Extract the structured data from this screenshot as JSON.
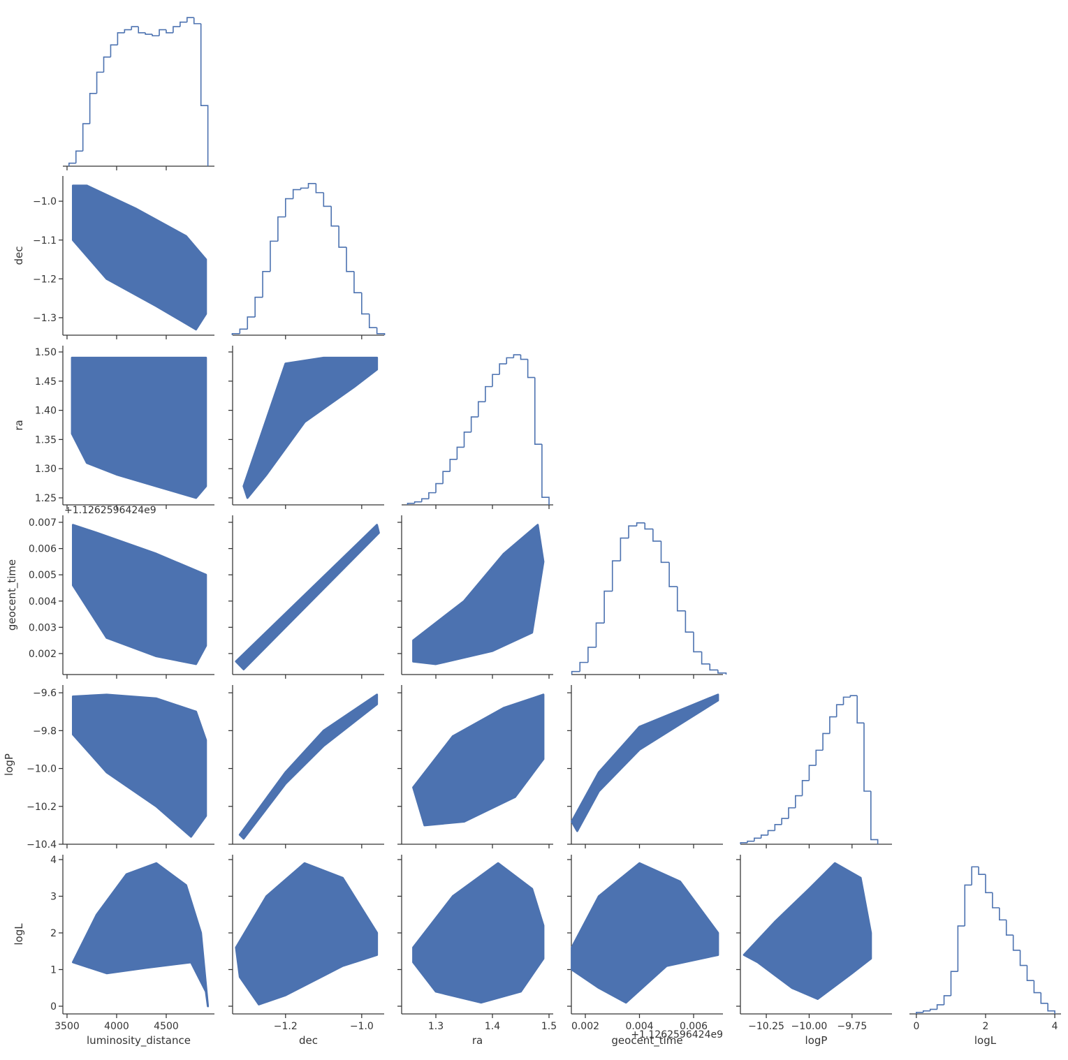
{
  "chart_data": {
    "type": "corner",
    "color": "#4c72b0",
    "hist_ylim": [
      0,
      105
    ],
    "variables": [
      {
        "name": "luminosity_distance",
        "xlim": [
          3458,
          4986
        ],
        "xticks": [
          3500,
          4000,
          4500
        ],
        "bins": [
          3520,
          3590,
          3660,
          3730,
          3800,
          3870,
          3940,
          4010,
          4080,
          4150,
          4220,
          4290,
          4360,
          4430,
          4500,
          4570,
          4640,
          4710,
          4780,
          4850,
          4920
        ],
        "counts": [
          2,
          10,
          28,
          48,
          62,
          72,
          80,
          88,
          90,
          92,
          88,
          87,
          86,
          90,
          88,
          92,
          95,
          98,
          94,
          40
        ]
      },
      {
        "name": "dec",
        "xlim": [
          -1.339,
          -0.941
        ],
        "xticks": [
          {
            "value": -1.2,
            "label": "−1.2"
          },
          {
            "value": -1.0,
            "label": "−1.0"
          }
        ],
        "ylim": [
          -1.345,
          -0.935
        ],
        "yticks": [
          {
            "value": -1.0,
            "label": "−1.0"
          },
          {
            "value": -1.1,
            "label": "−1.1"
          },
          {
            "value": -1.2,
            "label": "−1.2"
          },
          {
            "value": -1.3,
            "label": "−1.3"
          }
        ],
        "bins": [
          -1.34,
          -1.32,
          -1.3,
          -1.28,
          -1.26,
          -1.24,
          -1.22,
          -1.2,
          -1.18,
          -1.16,
          -1.14,
          -1.12,
          -1.1,
          -1.08,
          -1.06,
          -1.04,
          -1.02,
          -1.0,
          -0.98,
          -0.96,
          -0.94
        ],
        "counts": [
          1,
          4,
          12,
          25,
          42,
          62,
          78,
          90,
          96,
          97,
          100,
          94,
          85,
          72,
          58,
          42,
          28,
          14,
          5,
          1
        ]
      },
      {
        "name": "ra",
        "xlim": [
          1.2395,
          1.5074
        ],
        "xticks": [
          1.3,
          1.4,
          1.5
        ],
        "ylim": [
          1.238,
          1.5108
        ],
        "yticks": [
          1.25,
          {
            "value": 1.3,
            "label": "1.30"
          },
          1.35,
          {
            "value": 1.4,
            "label": "1.40"
          },
          1.45,
          {
            "value": 1.5,
            "label": "1.50"
          }
        ],
        "bins": [
          1.25,
          1.2625,
          1.275,
          1.2875,
          1.3,
          1.3125,
          1.325,
          1.3375,
          1.35,
          1.3625,
          1.375,
          1.3875,
          1.4,
          1.4125,
          1.425,
          1.4375,
          1.45,
          1.4625,
          1.475,
          1.4875,
          1.5
        ],
        "counts": [
          1,
          2,
          4,
          8,
          14,
          22,
          30,
          38,
          48,
          58,
          68,
          78,
          86,
          93,
          97,
          99,
          96,
          84,
          40,
          5
        ]
      },
      {
        "name": "geocent_time",
        "offset": "+1.1262596424e9",
        "xlim": [
          0.001484,
          0.007084
        ],
        "xticks": [
          0.002,
          0.004,
          0.006
        ],
        "ylim": [
          0.0012,
          0.007266
        ],
        "yticks": [
          0.002,
          0.003,
          0.004,
          0.005,
          0.006,
          0.007
        ],
        "bins": [
          0.0015,
          0.0018,
          0.0021,
          0.0024,
          0.0027,
          0.003,
          0.0033,
          0.0036,
          0.0039,
          0.0042,
          0.0045,
          0.0048,
          0.0051,
          0.0054,
          0.0057,
          0.006,
          0.0063,
          0.0066,
          0.0069,
          0.0072
        ],
        "counts": [
          2,
          8,
          18,
          34,
          55,
          75,
          90,
          98,
          100,
          96,
          88,
          74,
          58,
          42,
          28,
          15,
          7,
          3,
          1
        ]
      },
      {
        "name": "logP",
        "xlim": [
          -10.401,
          -9.517
        ],
        "xticks": [
          {
            "value": -10.25,
            "label": "−10.25"
          },
          {
            "value": -10.0,
            "label": "−10.00"
          },
          {
            "value": -9.75,
            "label": "−9.75"
          }
        ],
        "ylim": [
          -10.4,
          -9.559
        ],
        "yticks": [
          {
            "value": -9.6,
            "label": "−9.6"
          },
          {
            "value": -9.8,
            "label": "−9.8"
          },
          {
            "value": -10.0,
            "label": "−10.0"
          },
          {
            "value": -10.2,
            "label": "−10.2"
          },
          {
            "value": -10.4,
            "label": "−10.4"
          }
        ],
        "bins": [
          -10.4,
          -10.36,
          -10.32,
          -10.28,
          -10.24,
          -10.2,
          -10.16,
          -10.12,
          -10.08,
          -10.04,
          -10.0,
          -9.96,
          -9.92,
          -9.88,
          -9.84,
          -9.8,
          -9.76,
          -9.72,
          -9.68,
          -9.64,
          -9.6
        ],
        "counts": [
          1,
          2,
          4,
          6,
          9,
          13,
          17,
          24,
          32,
          42,
          52,
          62,
          73,
          84,
          92,
          97,
          98,
          80,
          35,
          3
        ]
      },
      {
        "name": "logL",
        "xlim": [
          -0.2,
          4.18
        ],
        "xticks": [
          0,
          2,
          4
        ],
        "ylim": [
          -0.21,
          4.133
        ],
        "yticks": [
          0,
          1,
          2,
          3,
          4
        ],
        "bins": [
          0,
          0.2,
          0.4,
          0.6,
          0.8,
          1.0,
          1.2,
          1.4,
          1.6,
          1.8,
          2.0,
          2.2,
          2.4,
          2.6,
          2.8,
          3.0,
          3.2,
          3.4,
          3.6,
          3.8,
          4.0
        ],
        "counts": [
          1,
          2,
          3,
          6,
          12,
          28,
          58,
          85,
          97,
          92,
          80,
          70,
          62,
          52,
          42,
          32,
          22,
          14,
          7,
          2
        ]
      }
    ],
    "regions": [
      [
        {
          "x": [
            3560,
            3700,
            4200,
            4700,
            4900,
            4900,
            4800,
            4400,
            3900,
            3560
          ],
          "y": [
            -0.96,
            -0.96,
            -1.02,
            -1.09,
            -1.15,
            -1.29,
            -1.33,
            -1.27,
            -1.2,
            -1.1
          ]
        }
      ],
      [
        {
          "x": [
            3550,
            4900,
            4900,
            4800,
            4400,
            4000,
            3700,
            3550
          ],
          "y": [
            1.49,
            1.49,
            1.27,
            1.25,
            1.27,
            1.29,
            1.31,
            1.36
          ]
        },
        {
          "x": [
            -1.31,
            -1.2,
            -1.1,
            -0.96,
            -0.96,
            -1.02,
            -1.15,
            -1.25,
            -1.3
          ],
          "y": [
            1.27,
            1.48,
            1.49,
            1.49,
            1.47,
            1.44,
            1.38,
            1.29,
            1.25
          ]
        }
      ],
      [
        {
          "x": [
            3560,
            3800,
            4400,
            4900,
            4900,
            4800,
            4400,
            3900,
            3560
          ],
          "y": [
            0.0069,
            0.0066,
            0.0058,
            0.005,
            0.0023,
            0.0016,
            0.0019,
            0.0026,
            0.0046
          ]
        },
        {
          "x": [
            -1.33,
            -0.96,
            -0.955,
            -1.31
          ],
          "y": [
            0.0017,
            0.0069,
            0.0066,
            0.0014
          ]
        },
        {
          "x": [
            1.26,
            1.35,
            1.42,
            1.48,
            1.49,
            1.47,
            1.4,
            1.3,
            1.26
          ],
          "y": [
            0.0025,
            0.004,
            0.0058,
            0.0069,
            0.0055,
            0.0028,
            0.0021,
            0.0016,
            0.0017
          ]
        }
      ],
      [
        {
          "x": [
            3560,
            3900,
            4400,
            4800,
            4900,
            4900,
            4750,
            4400,
            3900,
            3560
          ],
          "y": [
            -9.62,
            -9.61,
            -9.63,
            -9.7,
            -9.85,
            -10.25,
            -10.36,
            -10.2,
            -10.02,
            -9.82
          ]
        },
        {
          "x": [
            -1.32,
            -1.2,
            -1.1,
            -0.96,
            -0.96,
            -1.1,
            -1.2,
            -1.31
          ],
          "y": [
            -10.35,
            -10.02,
            -9.8,
            -9.61,
            -9.66,
            -9.88,
            -10.08,
            -10.37
          ]
        },
        {
          "x": [
            1.26,
            1.33,
            1.42,
            1.49,
            1.49,
            1.44,
            1.35,
            1.28
          ],
          "y": [
            -10.1,
            -9.83,
            -9.68,
            -9.61,
            -9.95,
            -10.15,
            -10.28,
            -10.3
          ]
        },
        {
          "x": [
            0.0015,
            0.0025,
            0.004,
            0.0069,
            0.0069,
            0.004,
            0.0025,
            0.0017
          ],
          "y": [
            -10.28,
            -10.02,
            -9.78,
            -9.61,
            -9.64,
            -9.9,
            -10.12,
            -10.33
          ]
        }
      ],
      [
        {
          "x": [
            3560,
            3800,
            4100,
            4400,
            4700,
            4850,
            4920,
            4900,
            4750,
            4300,
            3900,
            3560
          ],
          "y": [
            1.2,
            2.5,
            3.6,
            3.9,
            3.3,
            2.0,
            0,
            0.4,
            1.2,
            1.05,
            0.9,
            1.2
          ]
        },
        {
          "x": [
            -1.33,
            -1.25,
            -1.15,
            -1.05,
            -0.96,
            -0.96,
            -1.05,
            -1.2,
            -1.27,
            -1.32
          ],
          "y": [
            1.6,
            3.0,
            3.9,
            3.5,
            2.0,
            1.4,
            1.1,
            0.3,
            0.05,
            0.8
          ]
        },
        {
          "x": [
            1.26,
            1.33,
            1.41,
            1.47,
            1.49,
            1.49,
            1.45,
            1.38,
            1.3,
            1.26
          ],
          "y": [
            1.6,
            3.0,
            3.9,
            3.2,
            2.2,
            1.3,
            0.4,
            0.1,
            0.4,
            1.2
          ]
        },
        {
          "x": [
            0.0015,
            0.0025,
            0.004,
            0.0055,
            0.0069,
            0.0069,
            0.005,
            0.0035,
            0.0025,
            0.0015
          ],
          "y": [
            1.6,
            3.0,
            3.9,
            3.4,
            2.0,
            1.4,
            1.1,
            0.1,
            0.5,
            1.0
          ]
        },
        {
          "x": [
            -10.38,
            -10.2,
            -10.0,
            -9.85,
            -9.7,
            -9.64,
            -9.64,
            -9.75,
            -9.95,
            -10.1,
            -10.3
          ],
          "y": [
            1.4,
            2.3,
            3.2,
            3.9,
            3.5,
            2.0,
            1.3,
            0.9,
            0.2,
            0.5,
            1.2
          ]
        }
      ]
    ]
  }
}
